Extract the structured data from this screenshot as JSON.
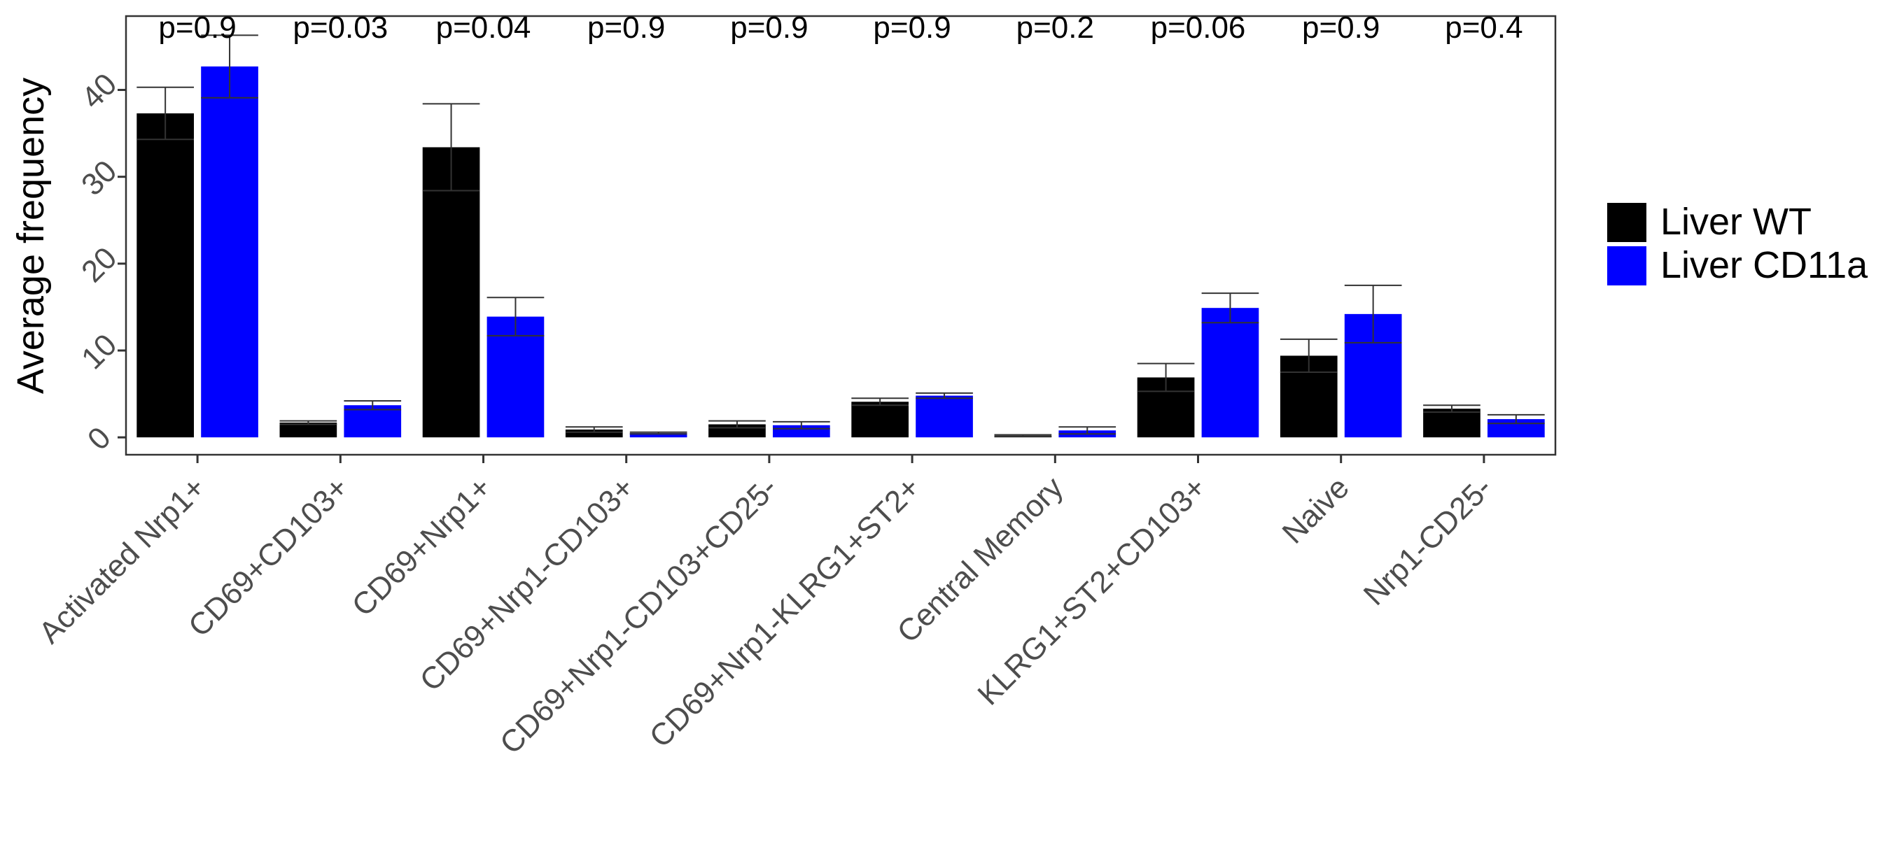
{
  "chart_data": {
    "type": "bar",
    "title": "",
    "xlabel": "",
    "ylabel": "Average frequency",
    "ylim": [
      -2,
      48.5
    ],
    "yticks": [
      0,
      10,
      20,
      30,
      40
    ],
    "grid": false,
    "legend_position": "right",
    "categories": [
      "Activated Nrp1+",
      "CD69+CD103+",
      "CD69+Nrp1+",
      "CD69+Nrp1-CD103+",
      "CD69+Nrp1-CD103+CD25-",
      "CD69+Nrp1-KLRG1+ST2+",
      "Central Memory",
      "KLRG1+ST2+CD103+",
      "Naive",
      "Nrp1-CD25-"
    ],
    "series": [
      {
        "name": "Liver WT",
        "color": "#000000",
        "values": [
          37.3,
          1.7,
          33.4,
          0.9,
          1.5,
          4.1,
          0.2,
          6.9,
          9.4,
          3.3
        ],
        "error": [
          3.0,
          0.2,
          5.0,
          0.3,
          0.4,
          0.4,
          0.1,
          1.6,
          1.9,
          0.4
        ]
      },
      {
        "name": "Liver CD11a",
        "color": "#0000ff",
        "values": [
          42.7,
          3.7,
          13.9,
          0.5,
          1.4,
          4.8,
          0.8,
          14.9,
          14.2,
          2.1
        ],
        "error": [
          3.6,
          0.5,
          2.2,
          0.1,
          0.4,
          0.3,
          0.4,
          1.7,
          3.3,
          0.5
        ]
      }
    ],
    "p_values": [
      "p=0.9",
      "p=0.03",
      "p=0.04",
      "p=0.9",
      "p=0.9",
      "p=0.9",
      "p=0.2",
      "p=0.06",
      "p=0.9",
      "p=0.4"
    ]
  }
}
